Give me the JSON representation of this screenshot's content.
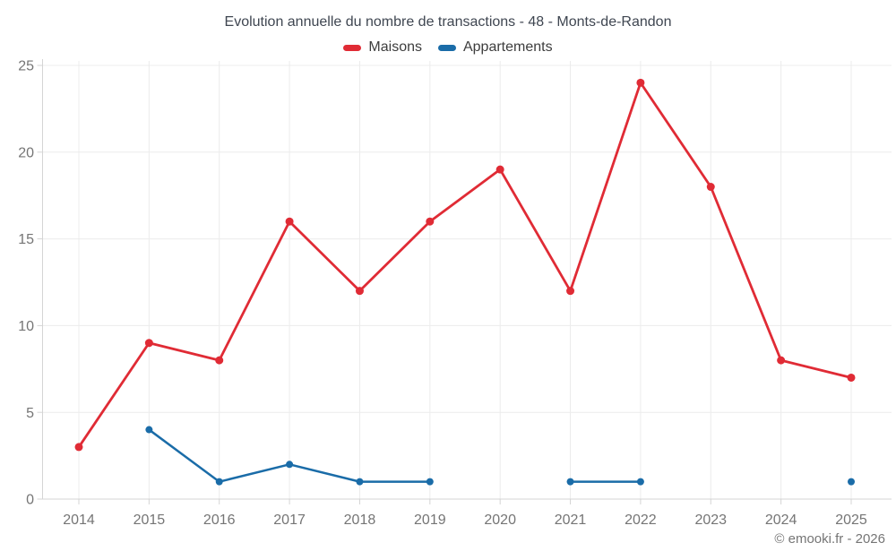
{
  "chart_data": {
    "type": "line",
    "title": "Evolution annuelle du nombre de transactions - 48 - Monts-de-Randon",
    "categories": [
      "2014",
      "2015",
      "2016",
      "2017",
      "2018",
      "2019",
      "2020",
      "2021",
      "2022",
      "2023",
      "2024",
      "2025"
    ],
    "series": [
      {
        "name": "Maisons",
        "color": "#e02b35",
        "values": [
          3,
          9,
          8,
          16,
          12,
          16,
          19,
          12,
          24,
          18,
          8,
          7
        ]
      },
      {
        "name": "Appartements",
        "color": "#1a6ca8",
        "values": [
          null,
          4,
          1,
          2,
          1,
          1,
          null,
          1,
          1,
          null,
          null,
          1
        ]
      }
    ],
    "xlabel": "",
    "ylabel": "",
    "ylim": [
      0,
      25
    ],
    "yticks": [
      0,
      5,
      10,
      15,
      20,
      25
    ],
    "grid": true,
    "legend_position": "top"
  },
  "footer": {
    "copyright": "© emooki.fr - 2026"
  },
  "theme": {
    "background": "#ffffff",
    "title_color": "#3f4651",
    "legend_text_color": "#3d3d3d",
    "tick_label_color": "#757575",
    "grid_color": "#ececec",
    "axis_color": "#d4d4d4",
    "footer_color": "#757575"
  }
}
